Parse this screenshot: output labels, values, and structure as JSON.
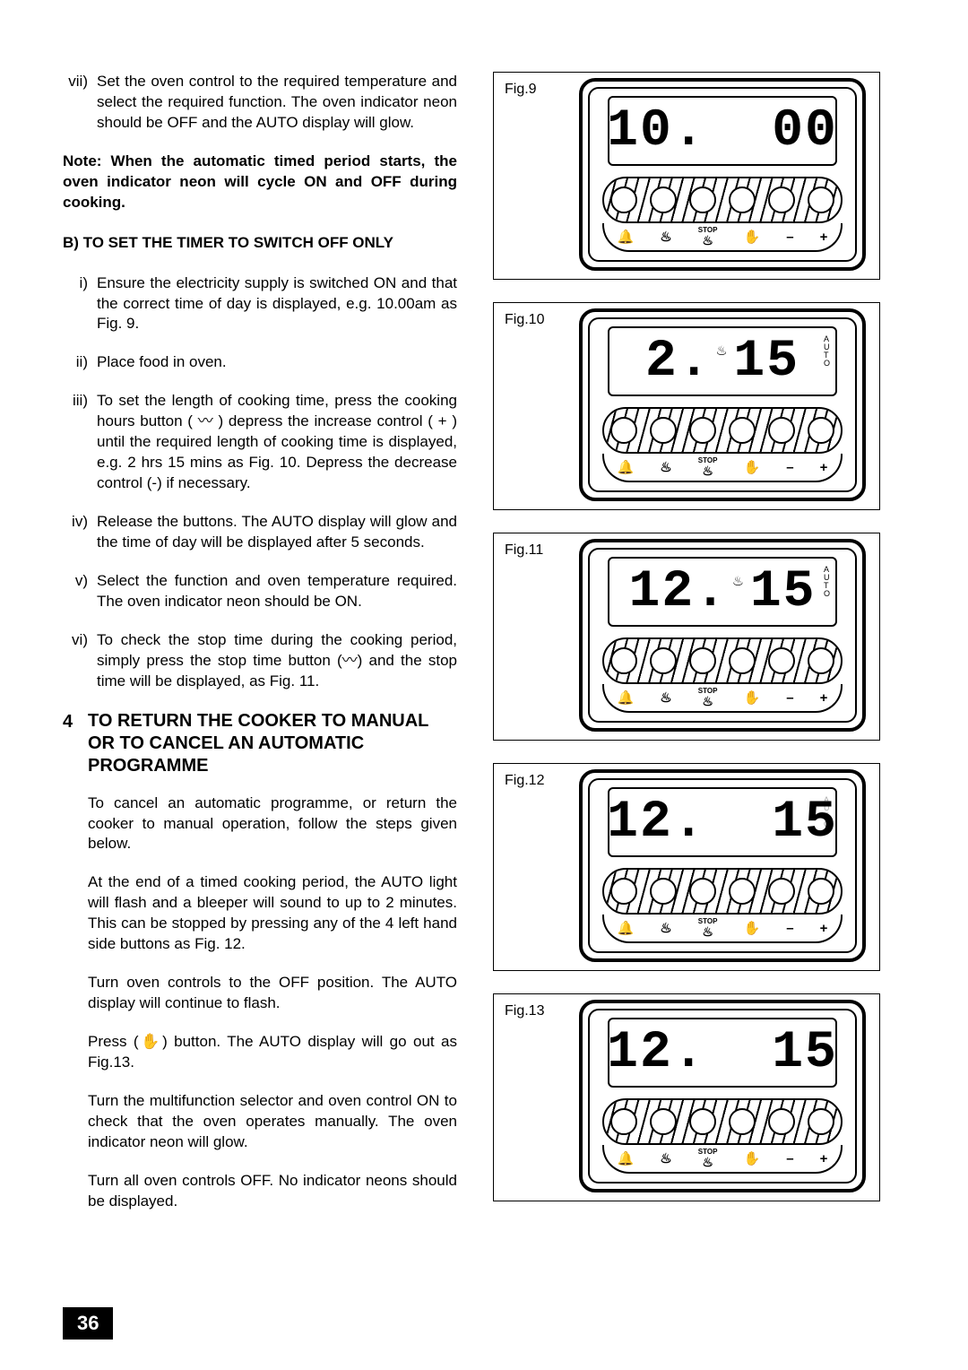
{
  "left": {
    "item_vii_num": "vii)",
    "item_vii_text": "Set the oven control to the required temperature and select the required function. The oven indicator neon should be OFF and the AUTO display will glow.",
    "note": "Note:  When the automatic timed period starts, the oven indicator neon will cycle ON and OFF during cooking.",
    "section_b": "B) TO SET THE TIMER TO SWITCH OFF ONLY",
    "b_i_num": "i)",
    "b_i_text": "Ensure the electricity supply is switched ON and that the correct time of day is displayed, e.g. 10.00am as Fig. 9.",
    "b_ii_num": "ii)",
    "b_ii_text": "Place food  in oven.",
    "b_iii_num": "iii)",
    "b_iii_text": "To set the length of cooking time, press the cooking hours button ( 〰 ) depress the increase control ( + ) until the required length of cooking time is displayed, e.g. 2 hrs 15 mins as Fig. 10.  Depress the decrease control (-) if necessary.",
    "b_iv_num": "iv)",
    "b_iv_text": "Release the buttons. The AUTO display will glow and the time of day will be displayed after 5 seconds.",
    "b_v_num": "v)",
    "b_v_text": "Select the function and oven temperature required. The oven indicator neon should be ON.",
    "b_vi_num": "vi)",
    "b_vi_text": "To check the stop time during the cooking period, simply press the stop time button (〰) and the stop time will be displayed, as Fig. 11.",
    "sec4_num": "4",
    "sec4_title": "TO RETURN THE COOKER TO MANUAL OR TO CANCEL AN AUTOMATIC PROGRAMME",
    "p1": "To cancel an  automatic programme, or return the cooker to manual operation, follow the steps given below.",
    "p2": "At the end of a timed cooking period, the AUTO light will flash and a bleeper will sound to up to 2 minutes. This can be stopped by pressing any of the 4 left hand side buttons as Fig. 12.",
    "p3": "Turn oven controls to the OFF position. The AUTO display will continue to flash.",
    "p4": "Press (✋) button. The AUTO  display will go out as Fig.13.",
    "p5": "Turn the multifunction selector and oven control ON to check that the oven operates manually. The oven indicator neon will glow.",
    "p6": "Turn all oven controls OFF. No indicator neons should be displayed."
  },
  "figs": {
    "f9": {
      "label": "Fig.9",
      "display_left": "10.",
      "display_right": "00",
      "show_pot": false,
      "show_auto": false,
      "auto_dashed": false
    },
    "f10": {
      "label": "Fig.10",
      "display_left": "2.",
      "display_right": "15",
      "show_pot": true,
      "show_auto": true,
      "auto_dashed": false
    },
    "f11": {
      "label": "Fig.11",
      "display_left": "12.",
      "display_right": "15",
      "show_pot": true,
      "show_auto": true,
      "auto_dashed": false
    },
    "f12": {
      "label": "Fig.12",
      "display_left": "12.",
      "display_right": "15",
      "show_pot": false,
      "show_auto": true,
      "auto_dashed": true
    },
    "f13": {
      "label": "Fig.13",
      "display_left": "12.",
      "display_right": "15",
      "show_pot": false,
      "show_auto": false,
      "auto_dashed": false
    }
  },
  "tabs": {
    "bell": "🔔",
    "pot": "♨",
    "stop_label": "STOP",
    "hand": "✋",
    "minus": "–",
    "plus": "+"
  },
  "auto_letters": [
    "A",
    "U",
    "T",
    "O"
  ],
  "page_num": "36"
}
